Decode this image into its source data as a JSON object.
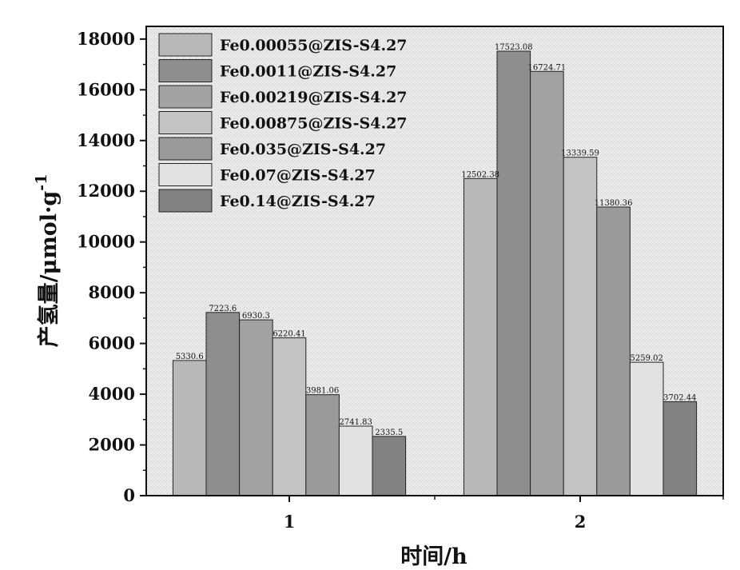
{
  "chart_data": {
    "type": "bar",
    "categories": [
      "1",
      "2"
    ],
    "xlabel": "时间/h",
    "ylabel": "产氢量/μmol·g",
    "ylabel_sup": "-1",
    "ylim": [
      0,
      18500
    ],
    "yticks": [
      0,
      2000,
      4000,
      6000,
      8000,
      10000,
      12000,
      14000,
      16000,
      18000
    ],
    "legend_position": "top-left",
    "grid": false,
    "series": [
      {
        "name": "Fe0.00055@ZIS-S4.27",
        "values": [
          5330.6,
          12502.38
        ],
        "labels": [
          "5330.6",
          "12502.38"
        ],
        "color": "#b8b8b8"
      },
      {
        "name": "Fe0.0011@ZIS-S4.27",
        "values": [
          7223.6,
          17523.08
        ],
        "labels": [
          "7223.6",
          "17523.08"
        ],
        "color": "#8e8e8e"
      },
      {
        "name": "Fe0.00219@ZIS-S4.27",
        "values": [
          6930.3,
          16724.71
        ],
        "labels": [
          "6930.3",
          "16724.71"
        ],
        "color": "#a2a2a2"
      },
      {
        "name": "Fe0.00875@ZIS-S4.27",
        "values": [
          6220.41,
          13339.59
        ],
        "labels": [
          "6220.41",
          "13339.59"
        ],
        "color": "#c4c4c4"
      },
      {
        "name": "Fe0.035@ZIS-S4.27",
        "values": [
          3981.06,
          11380.36
        ],
        "labels": [
          "3981.06",
          "11380.36"
        ],
        "color": "#9a9a9a"
      },
      {
        "name": "Fe0.07@ZIS-S4.27",
        "values": [
          2741.83,
          5259.02
        ],
        "labels": [
          "2741.83",
          "5259.02"
        ],
        "color": "#e2e2e2"
      },
      {
        "name": "Fe0.14@ZIS-S4.27",
        "values": [
          2335.5,
          3702.44
        ],
        "labels": [
          "2335.5",
          "3702.44"
        ],
        "color": "#828282"
      }
    ]
  }
}
